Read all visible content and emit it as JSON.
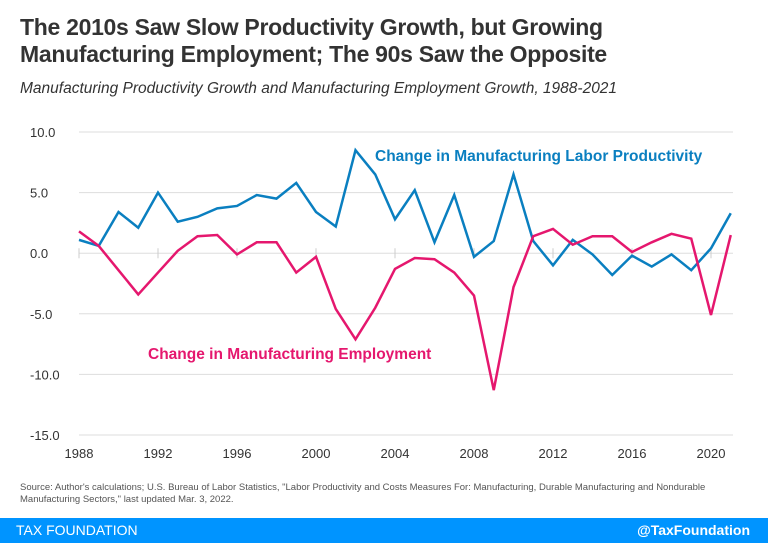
{
  "title": "The 2010s Saw Slow Productivity Growth, but Growing Manufacturing Employment; The 90s Saw the Opposite",
  "subtitle": "Manufacturing Productivity Growth and Manufacturing Employment Growth, 1988-2021",
  "source": "Source: Author's calculations; U.S. Bureau of Labor Statistics, \"Labor Productivity and Costs Measures For: Manufacturing, Durable Manufacturing and Nondurable Manufacturing Sectors,\" last updated Mar. 3, 2022.",
  "footer": {
    "brand": "TAX FOUNDATION",
    "handle": "@TaxFoundation"
  },
  "chart_data": {
    "type": "line",
    "x": [
      1988,
      1989,
      1990,
      1991,
      1992,
      1993,
      1994,
      1995,
      1996,
      1997,
      1998,
      1999,
      2000,
      2001,
      2002,
      2003,
      2004,
      2005,
      2006,
      2007,
      2008,
      2009,
      2010,
      2011,
      2012,
      2013,
      2014,
      2015,
      2016,
      2017,
      2018,
      2019,
      2020,
      2021
    ],
    "ylim": [
      -15,
      10
    ],
    "yticks": [
      "10.0",
      "5.0",
      "0.0",
      "-5.0",
      "-10.0",
      "-15.0"
    ],
    "yticks_values": [
      10,
      5,
      0,
      -5,
      -10,
      -15
    ],
    "xticks": [
      "1988",
      "1992",
      "1996",
      "2000",
      "2004",
      "2008",
      "2012",
      "2016",
      "2020"
    ],
    "xticks_values": [
      1988,
      1992,
      1996,
      2000,
      2004,
      2008,
      2012,
      2016,
      2020
    ],
    "grid": true,
    "series": [
      {
        "name": "Change in Manufacturing Labor Productivity",
        "color": "#0a7fc0",
        "values": [
          1.1,
          0.6,
          3.4,
          2.1,
          5.0,
          2.6,
          3.0,
          3.7,
          3.9,
          4.8,
          4.5,
          5.8,
          3.4,
          2.2,
          8.5,
          6.5,
          2.8,
          5.2,
          0.9,
          4.8,
          -0.3,
          1.0,
          6.5,
          1.0,
          -1.0,
          1.1,
          -0.1,
          -1.8,
          -0.2,
          -1.1,
          -0.1,
          -1.4,
          0.4,
          3.3
        ]
      },
      {
        "name": "Change in Manufacturing Employment",
        "color": "#e5176e",
        "values": [
          1.8,
          0.6,
          -1.4,
          -3.4,
          -1.6,
          0.2,
          1.4,
          1.5,
          -0.1,
          0.9,
          0.9,
          -1.6,
          -0.3,
          -4.6,
          -7.1,
          -4.5,
          -1.3,
          -0.4,
          -0.5,
          -1.6,
          -3.5,
          -11.3,
          -2.8,
          1.4,
          2.0,
          0.7,
          1.4,
          1.4,
          0.1,
          0.9,
          1.6,
          1.2,
          -5.1,
          1.5
        ]
      }
    ]
  }
}
